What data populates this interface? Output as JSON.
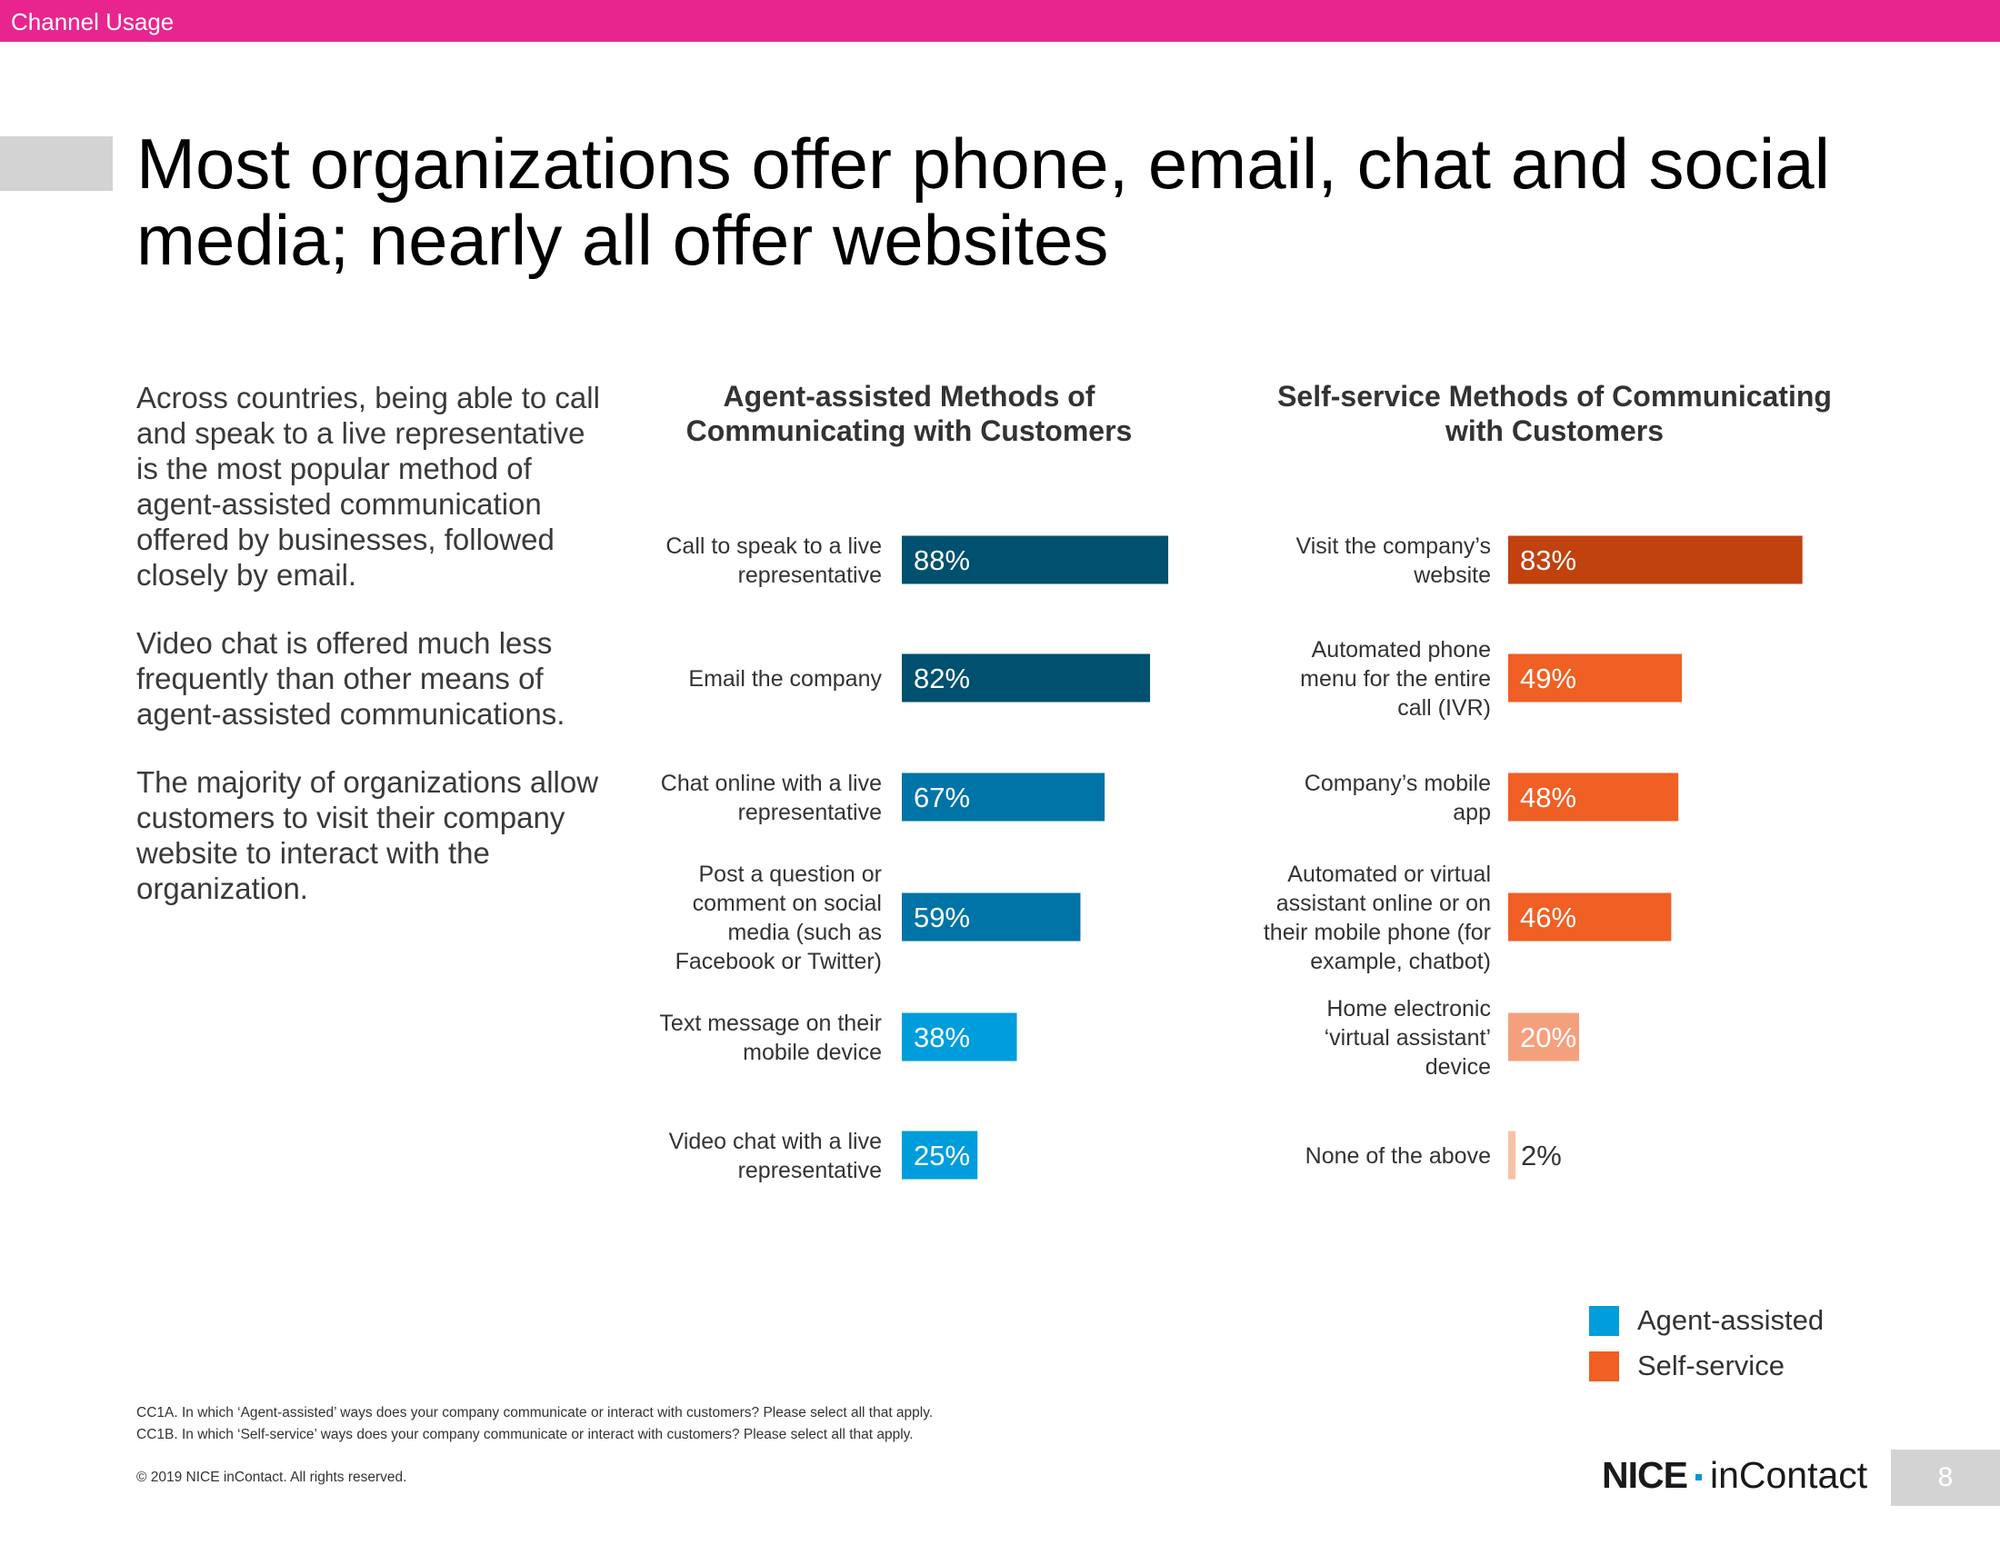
{
  "header": {
    "section_label": "Channel Usage"
  },
  "title": "Most organizations offer phone, email, chat and social media; nearly all offer websites",
  "body_paragraphs": [
    "Across countries, being able to call and speak to a live representative is the most popular method of agent-assisted communication offered by businesses, followed closely by email.",
    "Video chat is offered much less frequently than other means of agent-assisted communications.",
    "The majority of organizations allow customers to visit their company website to interact with the organization."
  ],
  "chart_data": [
    {
      "type": "bar",
      "orientation": "horizontal",
      "title": "Agent-assisted Methods of Communicating with Customers",
      "categories": [
        "Call to speak to a live representative",
        "Email the company",
        "Chat online with a live representative",
        "Post a question or comment on social media (such as Facebook or Twitter)",
        "Text message on their mobile device",
        "Video chat with a live representative"
      ],
      "series": [
        {
          "name": "Agent-assisted",
          "values": [
            88,
            82,
            67,
            59,
            38,
            25
          ]
        }
      ],
      "value_labels": [
        "88%",
        "82%",
        "67%",
        "59%",
        "38%",
        "25%"
      ],
      "bar_colors": [
        "#00506f",
        "#00506f",
        "#0074a6",
        "#0074a6",
        "#009ddc",
        "#009ddc"
      ],
      "xlim": [
        0,
        100
      ]
    },
    {
      "type": "bar",
      "orientation": "horizontal",
      "title": "Self-service Methods of Communicating with Customers",
      "categories": [
        "Visit the company’s website",
        "Automated phone menu for the entire call (IVR)",
        "Company’s mobile app",
        "Automated or virtual assistant online or on their mobile phone (for example, chatbot)",
        "Home electronic ‘virtual assistant’ device",
        "None of the above"
      ],
      "series": [
        {
          "name": "Self-service",
          "values": [
            83,
            49,
            48,
            46,
            20,
            2
          ]
        }
      ],
      "value_labels": [
        "83%",
        "49%",
        "48%",
        "46%",
        "20%",
        "2%"
      ],
      "bar_colors": [
        "#c1410f",
        "#f05f23",
        "#f05f23",
        "#f05f23",
        "#f5a07d",
        "#f7c1a6"
      ],
      "xlim": [
        0,
        100
      ]
    }
  ],
  "legend": [
    {
      "label": "Agent-assisted",
      "color": "#009ddc"
    },
    {
      "label": "Self-service",
      "color": "#f05f23"
    }
  ],
  "footnotes": [
    "CC1A. In which ‘Agent-assisted’ ways does your company communicate or interact with customers? Please select all that apply.",
    "CC1B. In which ‘Self-service’ ways does your company communicate or interact with customers?  Please select all that apply."
  ],
  "copyright": "© 2019 NICE inContact. All rights reserved.",
  "logo": {
    "brand": "NICE",
    "product": "inContact"
  },
  "page_number": "8"
}
